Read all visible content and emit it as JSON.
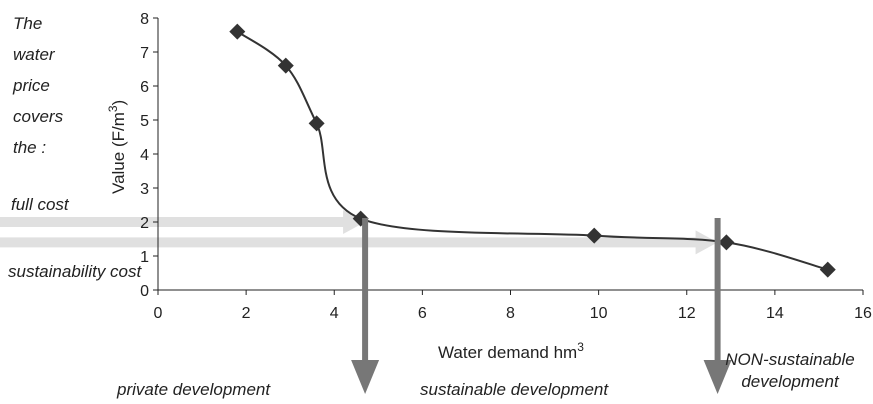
{
  "chart_data": {
    "type": "line",
    "title": "",
    "xlabel": "Water demand hm",
    "xlabel_sup": "3",
    "ylabel": "Value (F/m",
    "ylabel_sup": "3",
    "ylabel_end": ")",
    "xlim": [
      0,
      16
    ],
    "ylim": [
      0,
      8
    ],
    "x_ticks": [
      "0",
      "2",
      "4",
      "6",
      "8",
      "10",
      "12",
      "14",
      "16"
    ],
    "y_ticks": [
      "0",
      "1",
      "2",
      "3",
      "4",
      "5",
      "6",
      "7",
      "8"
    ],
    "grid": false,
    "marker": "diamond",
    "line_color": "#333333",
    "marker_color": "#333333",
    "series": [
      {
        "x": [
          1.8,
          2.9,
          3.6,
          4.6,
          9.9,
          12.9,
          15.2
        ],
        "y": [
          7.6,
          6.6,
          4.9,
          2.1,
          1.6,
          1.4,
          0.6
        ]
      }
    ],
    "arrows": {
      "horizontal_color": "#e0e0e0",
      "vertical_color": "#777777",
      "full_cost": {
        "y": 2.0,
        "x_end": 4.7
      },
      "sustainability_cost": {
        "y": 1.4,
        "x_end": 12.7
      },
      "down_at_x": [
        4.7,
        12.7
      ]
    }
  },
  "annotations": {
    "side_text": [
      "The",
      "water",
      "price",
      "covers",
      "the :"
    ],
    "full_cost": "full cost",
    "sustainability_cost": "sustainability cost",
    "private_development": "private development",
    "sustainable_development": "sustainable development",
    "non_sustainable_line1": "NON-sustainable",
    "non_sustainable_line2": "development"
  }
}
